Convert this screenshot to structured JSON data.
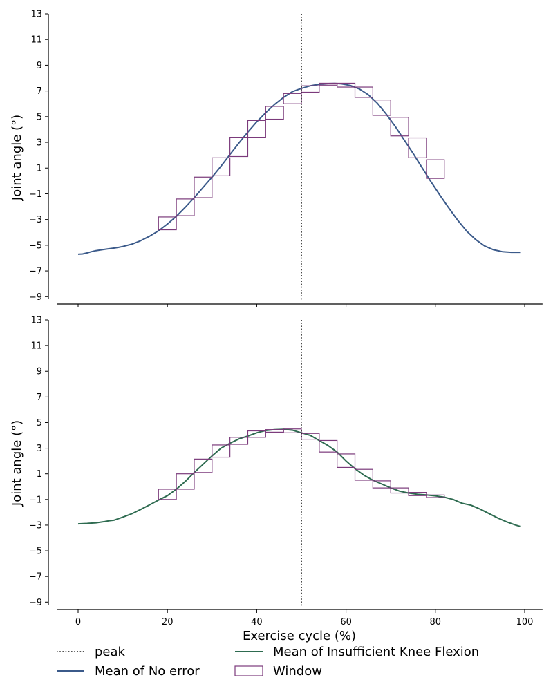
{
  "chart_data": [
    {
      "type": "line",
      "panel": "top",
      "xlabel": "",
      "ylabel": "Joint angle (°)",
      "xlim": [
        -5,
        104
      ],
      "ylim": [
        -9.2,
        13
      ],
      "yticks": [
        13,
        11,
        9,
        7,
        5,
        3,
        1,
        -1,
        -3,
        -5,
        -7,
        -9
      ],
      "ytick_labels": [
        "13",
        "11",
        "9",
        "7",
        "5",
        "3",
        "1",
        "−1",
        "−3",
        "−5",
        "−7",
        "−9"
      ],
      "peak_x": 50,
      "series": [
        {
          "name": "Mean of No error",
          "color": "#3b5a8a",
          "x": [
            0,
            1,
            2,
            3,
            4,
            5,
            6,
            7,
            8,
            9,
            10,
            12,
            14,
            16,
            18,
            20,
            22,
            24,
            26,
            28,
            30,
            32,
            34,
            36,
            38,
            40,
            42,
            44,
            46,
            48,
            50,
            52,
            54,
            56,
            57.5,
            59,
            61,
            63,
            65,
            67,
            69,
            71,
            73,
            75,
            77,
            79,
            81,
            83,
            85,
            87,
            89,
            91,
            93,
            95,
            97,
            99
          ],
          "y": [
            -5.7,
            -5.68,
            -5.6,
            -5.5,
            -5.42,
            -5.37,
            -5.32,
            -5.27,
            -5.22,
            -5.17,
            -5.1,
            -4.92,
            -4.65,
            -4.3,
            -3.88,
            -3.35,
            -2.75,
            -2.05,
            -1.3,
            -0.5,
            0.3,
            1.15,
            2.05,
            2.95,
            3.8,
            4.6,
            5.3,
            5.95,
            6.5,
            6.95,
            7.2,
            7.4,
            7.52,
            7.57,
            7.58,
            7.55,
            7.42,
            7.15,
            6.7,
            6.05,
            5.2,
            4.25,
            3.2,
            2.15,
            1.05,
            -0.05,
            -1.1,
            -2.1,
            -3.05,
            -3.9,
            -4.55,
            -5.05,
            -5.35,
            -5.5,
            -5.55,
            -5.55
          ]
        }
      ],
      "windows": [
        {
          "x0": 18,
          "x1": 22,
          "y0": -3.8,
          "y1": -2.8
        },
        {
          "x0": 22,
          "x1": 26,
          "y0": -2.7,
          "y1": -1.4
        },
        {
          "x0": 26,
          "x1": 30,
          "y0": -1.3,
          "y1": 0.3
        },
        {
          "x0": 30,
          "x1": 34,
          "y0": 0.4,
          "y1": 1.8
        },
        {
          "x0": 34,
          "x1": 38,
          "y0": 1.9,
          "y1": 3.4
        },
        {
          "x0": 38,
          "x1": 42,
          "y0": 3.4,
          "y1": 4.7
        },
        {
          "x0": 42,
          "x1": 46,
          "y0": 4.8,
          "y1": 5.8
        },
        {
          "x0": 46,
          "x1": 50,
          "y0": 6.0,
          "y1": 6.8
        },
        {
          "x0": 50,
          "x1": 54,
          "y0": 6.9,
          "y1": 7.4
        },
        {
          "x0": 54,
          "x1": 58,
          "y0": 7.45,
          "y1": 7.6
        },
        {
          "x0": 58,
          "x1": 62,
          "y0": 7.3,
          "y1": 7.6
        },
        {
          "x0": 62,
          "x1": 66,
          "y0": 6.5,
          "y1": 7.3
        },
        {
          "x0": 66,
          "x1": 70,
          "y0": 5.1,
          "y1": 6.3
        },
        {
          "x0": 70,
          "x1": 74,
          "y0": 3.5,
          "y1": 4.95
        },
        {
          "x0": 74,
          "x1": 78,
          "y0": 1.8,
          "y1": 3.35
        },
        {
          "x0": 78,
          "x1": 82,
          "y0": 0.2,
          "y1": 1.65
        }
      ]
    },
    {
      "type": "line",
      "panel": "bottom",
      "xlabel": "Exercise cycle (%)",
      "ylabel": "Joint angle (°)",
      "xlim": [
        -5,
        104
      ],
      "ylim": [
        -9.2,
        13
      ],
      "xticks": [
        0,
        20,
        40,
        60,
        80,
        100
      ],
      "xtick_labels": [
        "0",
        "20",
        "40",
        "60",
        "80",
        "100"
      ],
      "yticks": [
        13,
        11,
        9,
        7,
        5,
        3,
        1,
        -1,
        -3,
        -5,
        -7,
        -9
      ],
      "ytick_labels": [
        "13",
        "11",
        "9",
        "7",
        "5",
        "3",
        "1",
        "−1",
        "−3",
        "−5",
        "−7",
        "−9"
      ],
      "peak_x": 50,
      "series": [
        {
          "name": "Mean of Insufficient Knee Flexion",
          "color": "#2e6b50",
          "x": [
            0,
            2,
            4,
            6,
            7,
            8,
            10,
            12,
            14,
            16,
            18,
            20,
            22,
            24,
            26,
            28,
            30,
            32,
            34,
            36,
            38,
            40,
            42,
            44,
            46,
            48,
            50,
            52,
            54,
            56,
            58,
            60,
            62,
            64,
            66,
            68,
            70,
            72,
            74,
            76,
            78,
            80,
            82,
            84,
            86,
            88,
            90,
            92,
            94,
            96,
            98,
            99
          ],
          "y": [
            -2.9,
            -2.87,
            -2.82,
            -2.72,
            -2.66,
            -2.62,
            -2.38,
            -2.12,
            -1.78,
            -1.42,
            -1.05,
            -0.7,
            -0.2,
            0.4,
            1.1,
            1.75,
            2.4,
            3.0,
            3.38,
            3.72,
            3.95,
            4.2,
            4.38,
            4.45,
            4.47,
            4.4,
            4.2,
            4.0,
            3.6,
            3.2,
            2.7,
            2.0,
            1.4,
            0.9,
            0.5,
            0.2,
            -0.1,
            -0.35,
            -0.5,
            -0.6,
            -0.65,
            -0.72,
            -0.82,
            -1.0,
            -1.3,
            -1.45,
            -1.75,
            -2.1,
            -2.45,
            -2.75,
            -3.0,
            -3.1
          ]
        }
      ],
      "windows": [
        {
          "x0": 18,
          "x1": 22,
          "y0": -1.0,
          "y1": -0.2
        },
        {
          "x0": 22,
          "x1": 26,
          "y0": -0.2,
          "y1": 1.0
        },
        {
          "x0": 26,
          "x1": 30,
          "y0": 1.1,
          "y1": 2.15
        },
        {
          "x0": 30,
          "x1": 34,
          "y0": 2.3,
          "y1": 3.25
        },
        {
          "x0": 34,
          "x1": 38,
          "y0": 3.3,
          "y1": 3.85
        },
        {
          "x0": 38,
          "x1": 42,
          "y0": 3.85,
          "y1": 4.35
        },
        {
          "x0": 42,
          "x1": 46,
          "y0": 4.25,
          "y1": 4.45
        },
        {
          "x0": 46,
          "x1": 50,
          "y0": 4.2,
          "y1": 4.5
        },
        {
          "x0": 50,
          "x1": 54,
          "y0": 3.7,
          "y1": 4.15
        },
        {
          "x0": 54,
          "x1": 58,
          "y0": 2.7,
          "y1": 3.6
        },
        {
          "x0": 58,
          "x1": 62,
          "y0": 1.5,
          "y1": 2.55
        },
        {
          "x0": 62,
          "x1": 66,
          "y0": 0.5,
          "y1": 1.35
        },
        {
          "x0": 66,
          "x1": 70,
          "y0": -0.1,
          "y1": 0.45
        },
        {
          "x0": 70,
          "x1": 74,
          "y0": -0.5,
          "y1": -0.1
        },
        {
          "x0": 74,
          "x1": 78,
          "y0": -0.7,
          "y1": -0.45
        },
        {
          "x0": 78,
          "x1": 82,
          "y0": -0.85,
          "y1": -0.65
        }
      ]
    }
  ],
  "legend": {
    "placement": "bottom",
    "items": [
      {
        "label": "peak",
        "style": "dotted",
        "color": "#1a1a1a"
      },
      {
        "label": "Mean of Insufficient Knee Flexion",
        "style": "line",
        "color": "#2e6b50"
      },
      {
        "label": "Mean of No error",
        "style": "line",
        "color": "#3b5a8a"
      },
      {
        "label": "Window",
        "style": "box",
        "color": "#7b3a7b"
      }
    ]
  },
  "colors": {
    "window": "#7b3a7b",
    "peak": "#1a1a1a",
    "axis": "#000000"
  }
}
